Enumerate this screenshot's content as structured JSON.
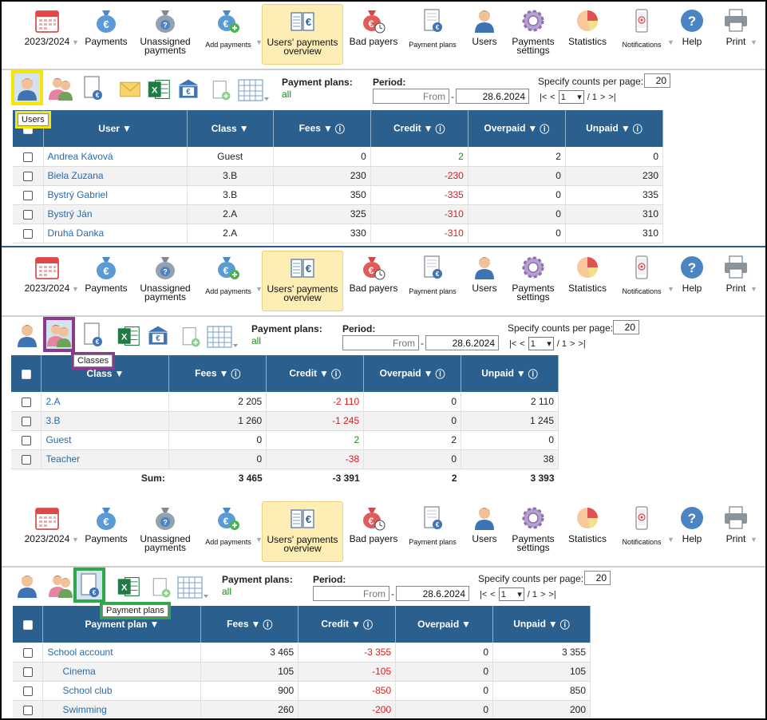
{
  "toolbar": {
    "items": [
      {
        "label": "2023/2024",
        "icon": "calendar-icon"
      },
      {
        "label": "Payments",
        "icon": "money-bag-icon"
      },
      {
        "label": "Unassigned\npayments",
        "icon": "unassigned-bag-icon"
      },
      {
        "label": "Add payments",
        "icon": "add-payment-icon"
      },
      {
        "label": "Users' payments\noverview",
        "icon": "ledger-euro-icon"
      },
      {
        "label": "Bad payers",
        "icon": "bad-payer-bag-icon"
      },
      {
        "label": "Payment plans",
        "icon": "payment-plan-doc-icon"
      },
      {
        "label": "Users",
        "icon": "user-icon"
      },
      {
        "label": "Payments\nsettings",
        "icon": "gear-icon"
      },
      {
        "label": "Statistics",
        "icon": "pie-chart-icon"
      },
      {
        "label": "Notifications",
        "icon": "phone-icon"
      },
      {
        "label": "Help",
        "icon": "help-icon"
      },
      {
        "label": "Print",
        "icon": "printer-icon"
      }
    ]
  },
  "filters": {
    "payment_plans_label": "Payment plans:",
    "payment_plans_value": "all",
    "period_label": "Period:",
    "from_placeholder": "From",
    "to_value": "28.6.2024",
    "counts_label": "Specify counts per page:",
    "counts_value": "20",
    "page_first": "|<",
    "page_prev": "<",
    "page_current": "1",
    "page_total": "/ 1",
    "page_next": ">",
    "page_last": ">|"
  },
  "tooltips": {
    "users": "Users",
    "classes": "Classes",
    "payment_plans": "Payment plans"
  },
  "colors": {
    "header_blue": "#2b5f8e",
    "negative_red": "#d91c1c",
    "positive_green": "#1e8a1e",
    "active_tab": "#fdeeb6"
  },
  "users_table": {
    "headers": [
      "User",
      "Class",
      "Fees",
      "Credit",
      "Overpaid",
      "Unpaid"
    ],
    "rows": [
      {
        "user": "Andrea Kávová",
        "class": "Guest",
        "fees": "0",
        "credit": "2",
        "overpaid": "2",
        "unpaid": "0"
      },
      {
        "user": "Biela Zuzana",
        "class": "3.B",
        "fees": "230",
        "credit": "-230",
        "overpaid": "0",
        "unpaid": "230"
      },
      {
        "user": "Bystrý Gabriel",
        "class": "3.B",
        "fees": "350",
        "credit": "-335",
        "overpaid": "0",
        "unpaid": "335"
      },
      {
        "user": "Bystrý Ján",
        "class": "2.A",
        "fees": "325",
        "credit": "-310",
        "overpaid": "0",
        "unpaid": "310"
      },
      {
        "user": "Druhá Danka",
        "class": "2.A",
        "fees": "330",
        "credit": "-310",
        "overpaid": "0",
        "unpaid": "310"
      }
    ]
  },
  "classes_table": {
    "headers": [
      "Class",
      "Fees",
      "Credit",
      "Overpaid",
      "Unpaid"
    ],
    "rows": [
      {
        "class": "2.A",
        "fees": "2 205",
        "credit": "-2 110",
        "overpaid": "0",
        "unpaid": "2 110"
      },
      {
        "class": "3.B",
        "fees": "1 260",
        "credit": "-1 245",
        "overpaid": "0",
        "unpaid": "1 245"
      },
      {
        "class": "Guest",
        "fees": "0",
        "credit": "2",
        "overpaid": "2",
        "unpaid": "0"
      },
      {
        "class": "Teacher",
        "fees": "0",
        "credit": "-38",
        "overpaid": "0",
        "unpaid": "38"
      }
    ],
    "sum": {
      "label": "Sum:",
      "fees": "3 465",
      "credit": "-3 391",
      "overpaid": "2",
      "unpaid": "3 393"
    }
  },
  "plans_table": {
    "headers": [
      "Payment plan",
      "Fees",
      "Credit",
      "Overpaid",
      "Unpaid"
    ],
    "rows": [
      {
        "plan": "School account",
        "fees": "3 465",
        "credit": "-3 355",
        "overpaid": "0",
        "unpaid": "3 355",
        "indent": false
      },
      {
        "plan": "Cinema",
        "fees": "105",
        "credit": "-105",
        "overpaid": "0",
        "unpaid": "105",
        "indent": true
      },
      {
        "plan": "School club",
        "fees": "900",
        "credit": "-850",
        "overpaid": "0",
        "unpaid": "850",
        "indent": true
      },
      {
        "plan": "Swimming",
        "fees": "260",
        "credit": "-200",
        "overpaid": "0",
        "unpaid": "200",
        "indent": true
      }
    ]
  }
}
